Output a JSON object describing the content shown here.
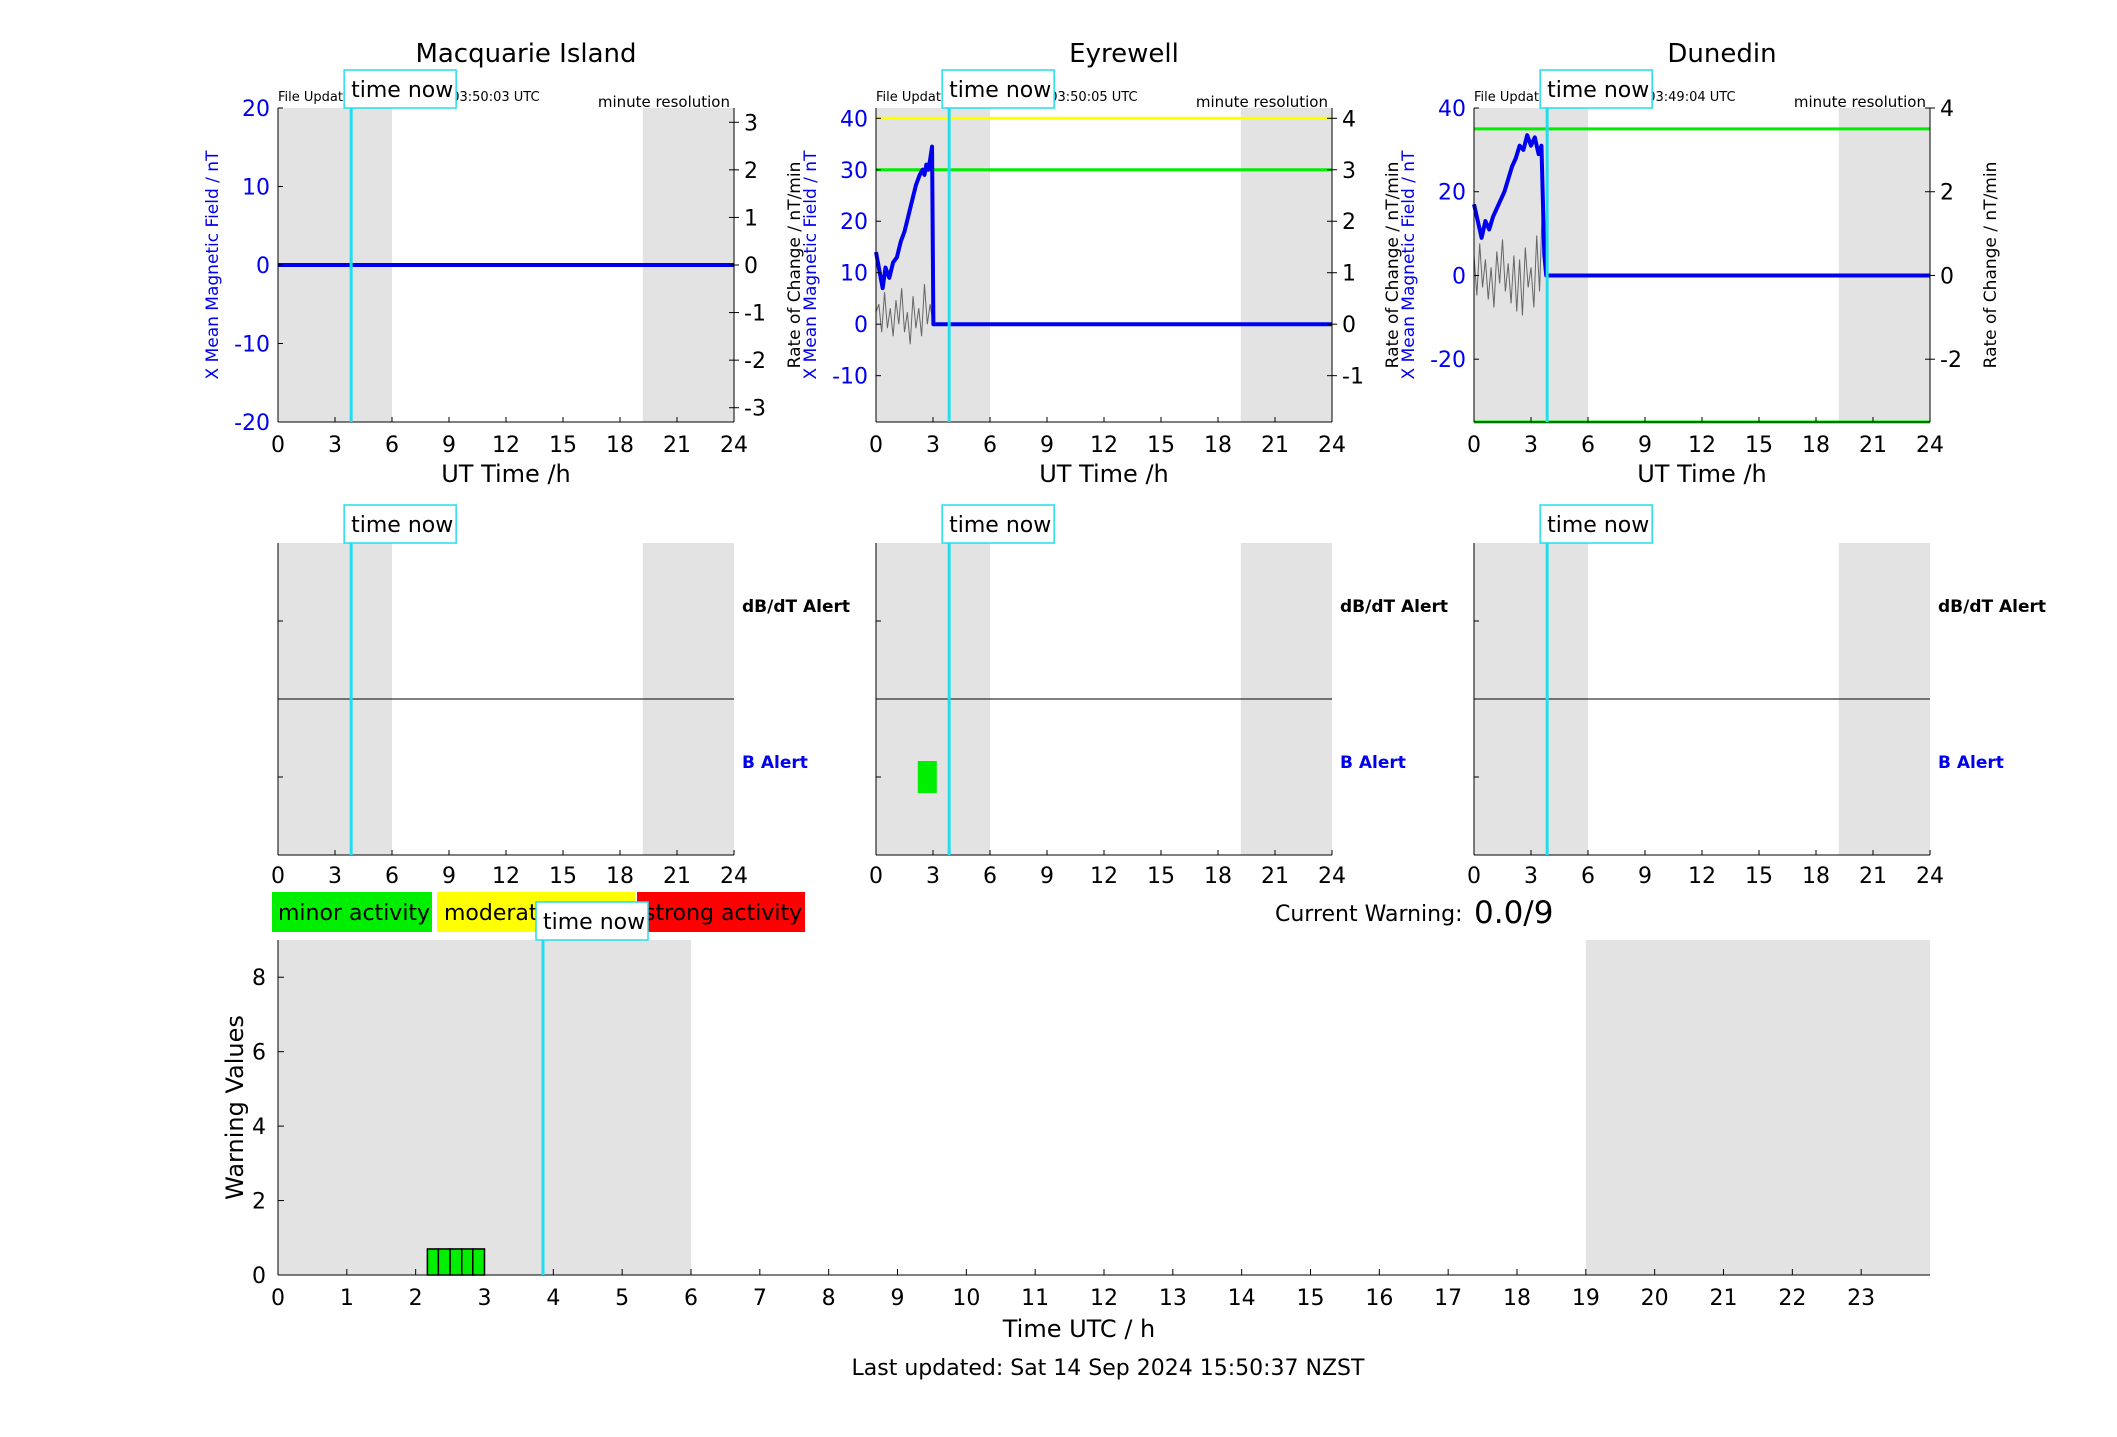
{
  "colors": {
    "blue": "#0000ee",
    "cyan": "#22ddee",
    "night": "#e3e3e3",
    "green": "#00ee00",
    "yellow": "#ffff00",
    "red": "#ff0000",
    "noise": "#666666"
  },
  "stations": [
    {
      "title": "Macquarie Island",
      "file_updated": "File Updated:14-Sep-2024 03:50:03 UTC",
      "resolution": "minute resolution",
      "ylabel_left": "X Mean Magnetic Field / nT",
      "ylabel_right": "Rate of Change / nT/min",
      "xlabel": "UT Time /h",
      "ylim_left": [
        -20,
        20
      ],
      "yticks_left": [
        -20,
        -10,
        0,
        10,
        20
      ],
      "ylim_right": [
        -3.3,
        3.3
      ],
      "yticks_right": [
        -3,
        -2,
        -1,
        0,
        1,
        2,
        3
      ],
      "threshold_lines": [],
      "field_series": [
        [
          0,
          0
        ],
        [
          24,
          0
        ]
      ],
      "rate_series": [],
      "night_shade_hours": [
        [
          0,
          6
        ],
        [
          19.2,
          24
        ]
      ]
    },
    {
      "title": "Eyrewell",
      "file_updated": "File Updated:14-Sep-2024 03:50:05 UTC",
      "resolution": "minute resolution",
      "ylabel_left": "X Mean Magnetic Field / nT",
      "ylabel_right": "Rate of Change / nT/min",
      "xlabel": "UT Time /h",
      "ylim_left": [
        -19,
        42
      ],
      "yticks_left": [
        -10,
        0,
        10,
        20,
        30,
        40
      ],
      "ylim_right": [
        -1.9,
        4.2
      ],
      "yticks_right": [
        -1,
        0,
        1,
        2,
        3,
        4
      ],
      "threshold_lines": [
        {
          "value": 40,
          "color": "#ffff00"
        },
        {
          "value": 30,
          "color": "#00ee00"
        }
      ],
      "field_series": [
        [
          0,
          14
        ],
        [
          0.2,
          10
        ],
        [
          0.35,
          7
        ],
        [
          0.5,
          11
        ],
        [
          0.7,
          9
        ],
        [
          0.9,
          12
        ],
        [
          1.1,
          13
        ],
        [
          1.3,
          16
        ],
        [
          1.5,
          18
        ],
        [
          1.7,
          21
        ],
        [
          1.9,
          24
        ],
        [
          2.1,
          27
        ],
        [
          2.3,
          29
        ],
        [
          2.45,
          30
        ],
        [
          2.55,
          29
        ],
        [
          2.65,
          31
        ],
        [
          2.75,
          30
        ],
        [
          2.85,
          32
        ],
        [
          2.95,
          34.5
        ],
        [
          3.02,
          0
        ],
        [
          24,
          0
        ]
      ],
      "rate_series": [
        [
          0,
          -3
        ],
        [
          0.15,
          -5
        ],
        [
          0.3,
          2
        ],
        [
          0.45,
          -8
        ],
        [
          0.6,
          1
        ],
        [
          0.75,
          -4
        ],
        [
          0.9,
          3
        ],
        [
          1.05,
          -6
        ],
        [
          1.2,
          0
        ],
        [
          1.35,
          -9
        ],
        [
          1.5,
          2
        ],
        [
          1.65,
          -3
        ],
        [
          1.8,
          5
        ],
        [
          1.95,
          -7
        ],
        [
          2.1,
          1
        ],
        [
          2.25,
          -4
        ],
        [
          2.4,
          3
        ],
        [
          2.55,
          -10
        ],
        [
          2.7,
          0
        ],
        [
          2.85,
          -5
        ],
        [
          3.0,
          0
        ]
      ],
      "night_shade_hours": [
        [
          0,
          6
        ],
        [
          19.2,
          24
        ]
      ]
    },
    {
      "title": "Dunedin",
      "file_updated": "File Updated:14-Sep-2024 03:49:04 UTC",
      "resolution": "minute resolution",
      "ylabel_left": "X Mean Magnetic Field / nT",
      "ylabel_right": "Rate of Change / nT/min",
      "xlabel": "UT Time /h",
      "ylim_left": [
        -35,
        40
      ],
      "yticks_left": [
        -20,
        0,
        20,
        40
      ],
      "ylim_right": [
        -3.5,
        4.0
      ],
      "yticks_right": [
        -2,
        0,
        2,
        4
      ],
      "threshold_lines": [
        {
          "value": 35,
          "color": "#00ee00"
        },
        {
          "value": -35,
          "color": "#00ee00"
        }
      ],
      "field_series": [
        [
          0,
          17
        ],
        [
          0.2,
          13
        ],
        [
          0.4,
          9
        ],
        [
          0.6,
          13
        ],
        [
          0.8,
          11
        ],
        [
          1.0,
          14
        ],
        [
          1.2,
          16
        ],
        [
          1.4,
          18
        ],
        [
          1.6,
          20
        ],
        [
          1.8,
          23
        ],
        [
          2.0,
          26
        ],
        [
          2.2,
          28
        ],
        [
          2.4,
          31
        ],
        [
          2.6,
          30
        ],
        [
          2.8,
          33.5
        ],
        [
          3.0,
          31
        ],
        [
          3.2,
          33
        ],
        [
          3.4,
          29
        ],
        [
          3.55,
          31
        ],
        [
          3.7,
          5
        ],
        [
          3.8,
          0
        ],
        [
          24,
          0
        ]
      ],
      "rate_series": [
        [
          0,
          -5
        ],
        [
          0.15,
          5
        ],
        [
          0.3,
          -8
        ],
        [
          0.45,
          3
        ],
        [
          0.6,
          -4
        ],
        [
          0.75,
          6
        ],
        [
          0.9,
          -2
        ],
        [
          1.05,
          8
        ],
        [
          1.2,
          -6
        ],
        [
          1.35,
          2
        ],
        [
          1.5,
          -9
        ],
        [
          1.65,
          4
        ],
        [
          1.8,
          -3
        ],
        [
          1.95,
          7
        ],
        [
          2.1,
          -5
        ],
        [
          2.25,
          9
        ],
        [
          2.4,
          -4
        ],
        [
          2.55,
          10
        ],
        [
          2.7,
          -7
        ],
        [
          2.85,
          3
        ],
        [
          3.0,
          -2
        ],
        [
          3.15,
          8
        ],
        [
          3.3,
          -10
        ],
        [
          3.45,
          4
        ],
        [
          3.6,
          -18
        ],
        [
          3.75,
          0
        ]
      ],
      "night_shade_hours": [
        [
          0,
          6
        ],
        [
          19.2,
          24
        ]
      ]
    }
  ],
  "time_now_label": "time now",
  "time_now_hour": 3.85,
  "alert_labels": {
    "dbdt": "dB/dT Alert",
    "b": "B Alert"
  },
  "alert_blocks": [
    [],
    [
      {
        "start": 2.2,
        "end": 3.2,
        "row": "b"
      }
    ],
    []
  ],
  "xticks_hours": [
    0,
    3,
    6,
    9,
    12,
    15,
    18,
    21,
    24
  ],
  "legend": {
    "minor": "minor activity",
    "moderate": "moderate activity",
    "strong": "strong activity"
  },
  "current_warning": {
    "label": "Current Warning:",
    "value": "0.0/9"
  },
  "chart_data": {
    "type": "bar",
    "ylabel": "Warning Values",
    "xlabel": "Time UTC / h",
    "xlim": [
      0,
      24
    ],
    "ylim": [
      0,
      9
    ],
    "yticks": [
      0,
      2,
      4,
      6,
      8
    ],
    "xticks": [
      0,
      1,
      2,
      3,
      4,
      5,
      6,
      7,
      8,
      9,
      10,
      11,
      12,
      13,
      14,
      15,
      16,
      17,
      18,
      19,
      20,
      21,
      22,
      23
    ],
    "bars": [
      {
        "start": 2.17,
        "end": 2.33,
        "value": 0.7
      },
      {
        "start": 2.33,
        "end": 2.5,
        "value": 0.7
      },
      {
        "start": 2.5,
        "end": 2.67,
        "value": 0.7
      },
      {
        "start": 2.67,
        "end": 2.83,
        "value": 0.7
      },
      {
        "start": 2.83,
        "end": 3.0,
        "value": 0.7
      }
    ],
    "night_shade_hours": [
      [
        0,
        6
      ],
      [
        19,
        24
      ]
    ]
  },
  "footer": "Last updated: Sat 14 Sep 2024 15:50:37 NZST"
}
